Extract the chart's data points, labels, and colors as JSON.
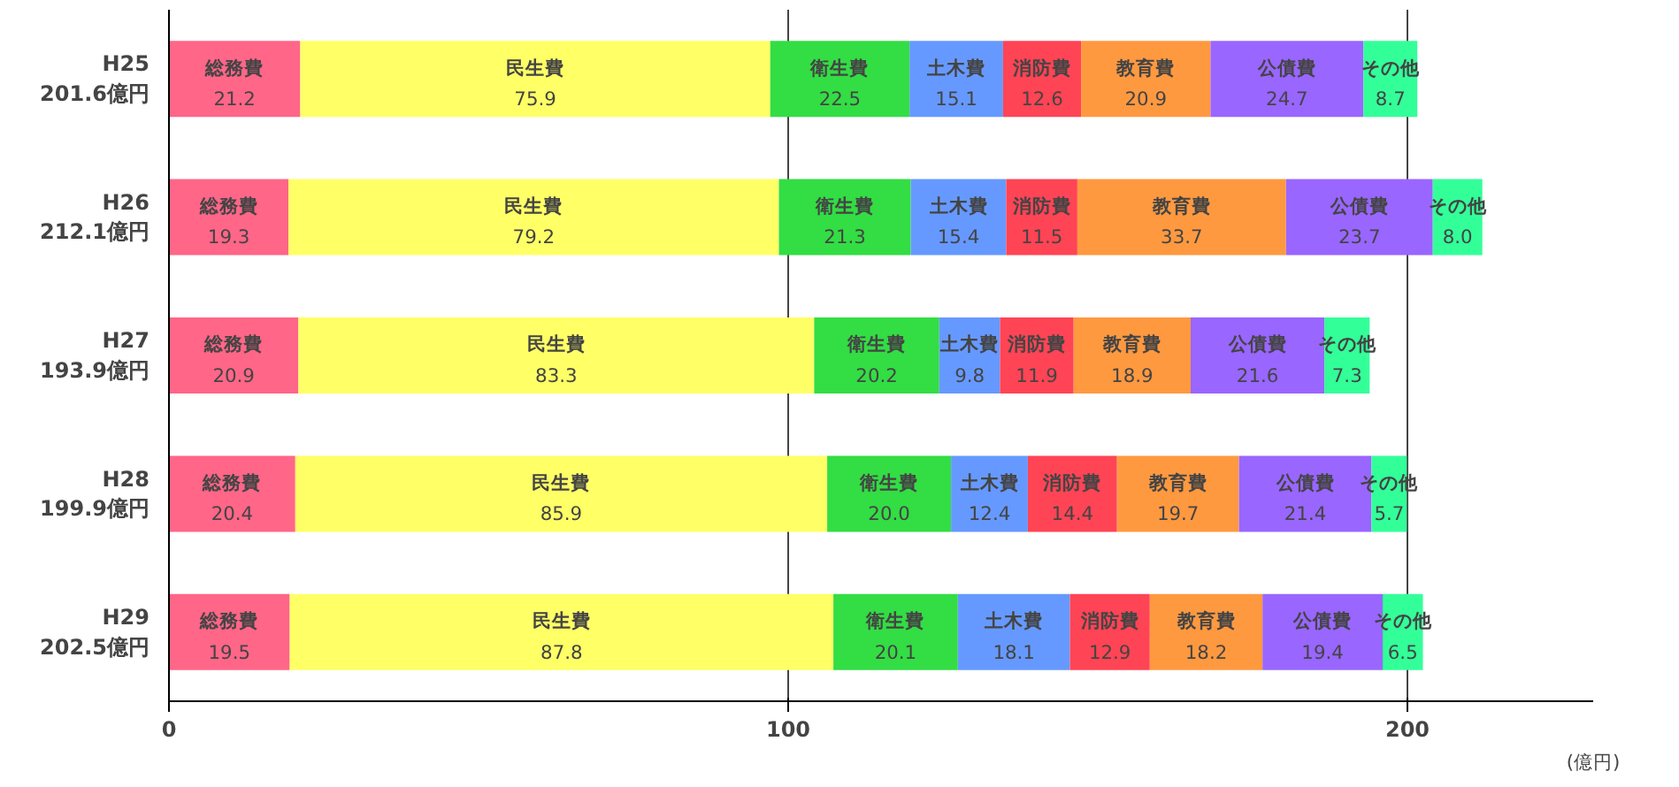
{
  "chart_data": {
    "type": "bar",
    "orientation": "horizontal",
    "stacked": true,
    "data_labels": true,
    "grid": "x",
    "xlabel": "(億円)",
    "xlim": [
      0,
      230
    ],
    "xticks": [
      0,
      100,
      200
    ],
    "categories": [
      "H25\n201.6億円",
      "H26\n212.1億円",
      "H27\n193.9億円",
      "H28\n199.9億円",
      "H29\n202.5億円"
    ],
    "series": [
      {
        "name": "総務費",
        "color": "#ff6688",
        "values": [
          21.2,
          19.3,
          20.9,
          20.4,
          19.5
        ]
      },
      {
        "name": "民生費",
        "color": "#ffff66",
        "values": [
          75.9,
          79.2,
          83.3,
          85.9,
          87.8
        ]
      },
      {
        "name": "衛生費",
        "color": "#33dd44",
        "values": [
          22.5,
          21.3,
          20.2,
          20.0,
          20.1
        ],
        "value_labels": [
          "22.5",
          "21.3",
          "20.2",
          "20.0",
          "20.1"
        ]
      },
      {
        "name": "土木費",
        "color": "#6699ff",
        "values": [
          15.1,
          15.4,
          9.8,
          12.4,
          18.1
        ]
      },
      {
        "name": "消防費",
        "color": "#ff4455",
        "values": [
          12.6,
          11.5,
          11.9,
          14.4,
          12.9
        ]
      },
      {
        "name": "教育費",
        "color": "#ff9940",
        "values": [
          20.9,
          33.7,
          18.9,
          19.7,
          18.2
        ]
      },
      {
        "name": "公債費",
        "color": "#9966ff",
        "values": [
          24.7,
          23.7,
          21.6,
          21.4,
          19.4
        ]
      },
      {
        "name": "その他",
        "color": "#33ff99",
        "values": [
          8.7,
          8.0,
          7.3,
          5.7,
          6.5
        ],
        "value_labels": [
          "8.7",
          "8.0",
          "7.3",
          "5.7",
          "6.5"
        ]
      }
    ]
  }
}
